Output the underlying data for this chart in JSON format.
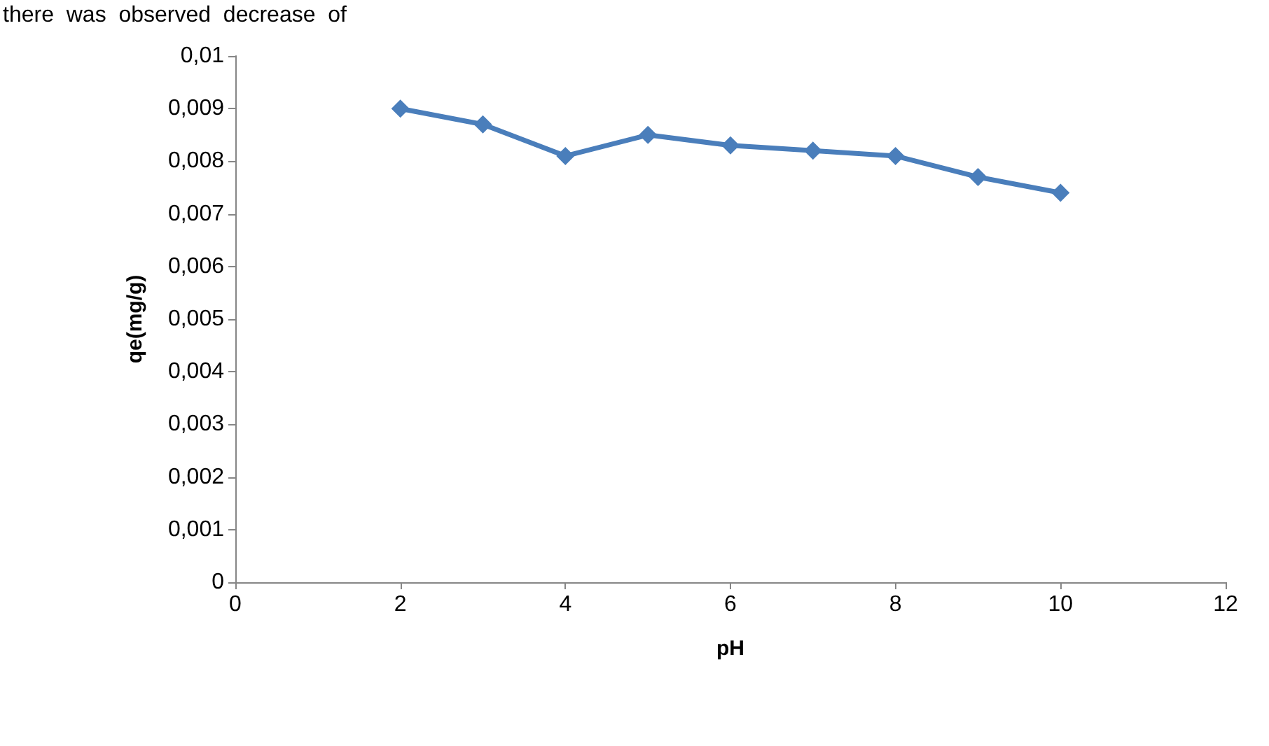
{
  "chart_data": {
    "type": "line",
    "xlabel": "pH",
    "ylabel": "qe(mg/g)",
    "annotations": [
      "there  was  observed  decrease  of"
    ],
    "x": [
      2,
      3,
      4,
      5,
      6,
      7,
      8,
      9,
      10
    ],
    "series": [
      {
        "color": "#4a7ebb",
        "values": [
          0.009,
          0.0087,
          0.0081,
          0.0085,
          0.0083,
          0.0082,
          0.0081,
          0.0077,
          0.0074
        ]
      }
    ],
    "xlim": [
      0,
      12
    ],
    "xticks": [
      0,
      2,
      4,
      6,
      8,
      10,
      12
    ],
    "ylim": [
      0,
      0.01
    ],
    "yticks": [
      0,
      {
        "value": 0.001,
        "label": "0,001"
      },
      {
        "value": 0.002,
        "label": "0,002"
      },
      {
        "value": 0.003,
        "label": "0,003"
      },
      {
        "value": 0.004,
        "label": "0,004"
      },
      {
        "value": 0.005,
        "label": "0,005"
      },
      {
        "value": 0.006,
        "label": "0,006"
      },
      {
        "value": 0.007,
        "label": "0,007"
      },
      {
        "value": 0.008,
        "label": "0,008"
      },
      {
        "value": 0.009,
        "label": "0,009"
      },
      {
        "value": 0.01,
        "label": "0,01"
      }
    ],
    "grid": false,
    "marker": "diamond",
    "line_style": "solid"
  }
}
